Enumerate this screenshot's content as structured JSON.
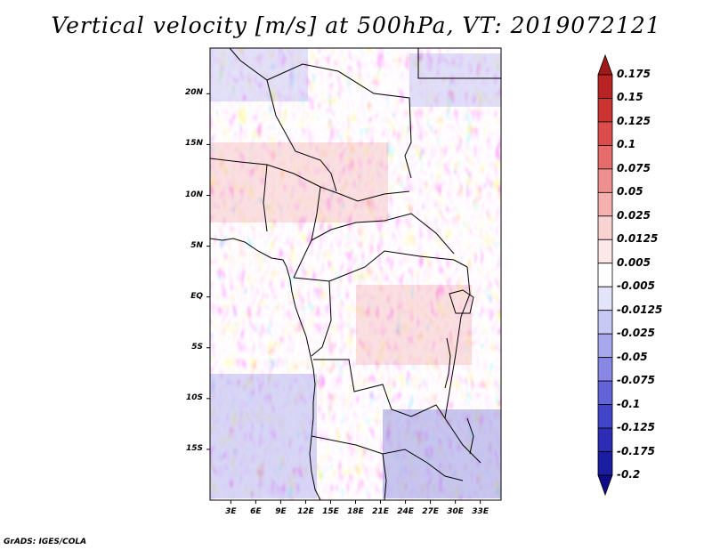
{
  "title": "Vertical velocity [m/s] at 500hPa, VT: 2019072121",
  "credit": "GrADS: IGES/COLA",
  "map": {
    "lon_range": [
      0.5,
      35.5
    ],
    "lat_range": [
      -20,
      24.5
    ],
    "lat_labels": [
      {
        "text": "20N",
        "lat": 20
      },
      {
        "text": "15N",
        "lat": 15
      },
      {
        "text": "10N",
        "lat": 10
      },
      {
        "text": "5N",
        "lat": 5
      },
      {
        "text": "EQ",
        "lat": 0
      },
      {
        "text": "5S",
        "lat": -5
      },
      {
        "text": "10S",
        "lat": -10
      },
      {
        "text": "15S",
        "lat": -15
      }
    ],
    "lon_labels": [
      {
        "text": "3E",
        "lon": 3
      },
      {
        "text": "6E",
        "lon": 6
      },
      {
        "text": "9E",
        "lon": 9
      },
      {
        "text": "12E",
        "lon": 12
      },
      {
        "text": "15E",
        "lon": 15
      },
      {
        "text": "18E",
        "lon": 18
      },
      {
        "text": "21E",
        "lon": 21
      },
      {
        "text": "24E",
        "lon": 24
      },
      {
        "text": "27E",
        "lon": 27
      },
      {
        "text": "30E",
        "lon": 30
      },
      {
        "text": "33E",
        "lon": 33
      }
    ]
  },
  "colorbar": {
    "levels": [
      "0.175",
      "0.15",
      "0.125",
      "0.1",
      "0.075",
      "0.05",
      "0.025",
      "0.0125",
      "0.005",
      "-0.005",
      "-0.0125",
      "-0.025",
      "-0.05",
      "-0.075",
      "-0.1",
      "-0.125",
      "-0.175",
      "-0.2"
    ],
    "colors": [
      "#a01818",
      "#b82424",
      "#cc3434",
      "#dd4c4c",
      "#e66c6c",
      "#ee9090",
      "#f4b0b0",
      "#f9d2d2",
      "#fce8e8",
      "#ffffff",
      "#e4e4fb",
      "#c8c8f4",
      "#a8a8ee",
      "#8888e4",
      "#6464d8",
      "#4444c8",
      "#2c2cb4",
      "#1c1ca0",
      "#100c88"
    ]
  }
}
